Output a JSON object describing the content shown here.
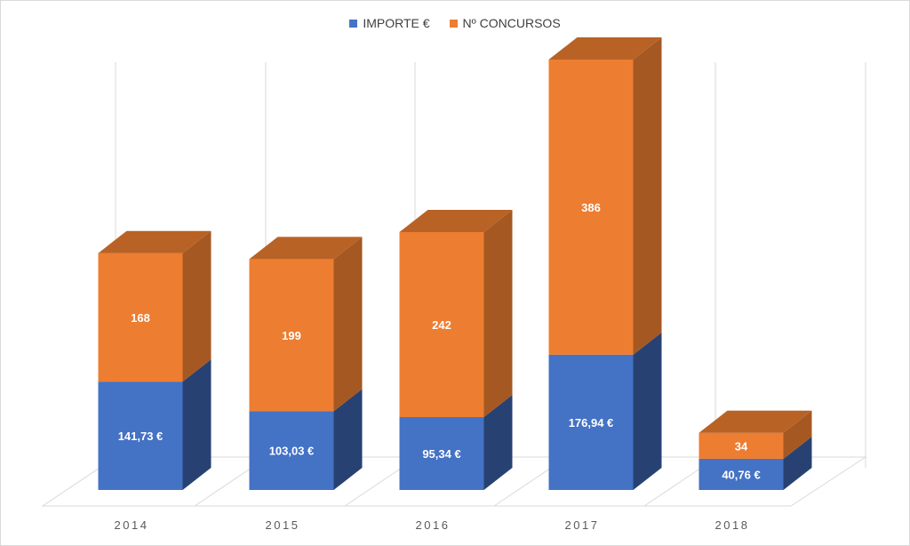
{
  "chart_data": {
    "type": "bar",
    "stacked": true,
    "style": "3d-column",
    "categories": [
      "2014",
      "2015",
      "2016",
      "2017",
      "2018"
    ],
    "series": [
      {
        "name": "IMPORTE €",
        "color": "#4472c4",
        "values": [
          141.73,
          103.03,
          95.34,
          176.94,
          40.76
        ],
        "labels": [
          "141,73 €",
          "103,03 €",
          "95,34 €",
          "176,94 €",
          "40,76 €"
        ]
      },
      {
        "name": "Nº CONCURSOS",
        "color": "#ed7d31",
        "values": [
          168,
          199,
          242,
          386,
          34
        ],
        "labels": [
          "168",
          "199",
          "242",
          "386",
          "34"
        ]
      }
    ],
    "title": "",
    "xlabel": "",
    "ylabel": "",
    "ylim": [
      0,
      562.94
    ],
    "grid": true,
    "legend_position": "top"
  }
}
